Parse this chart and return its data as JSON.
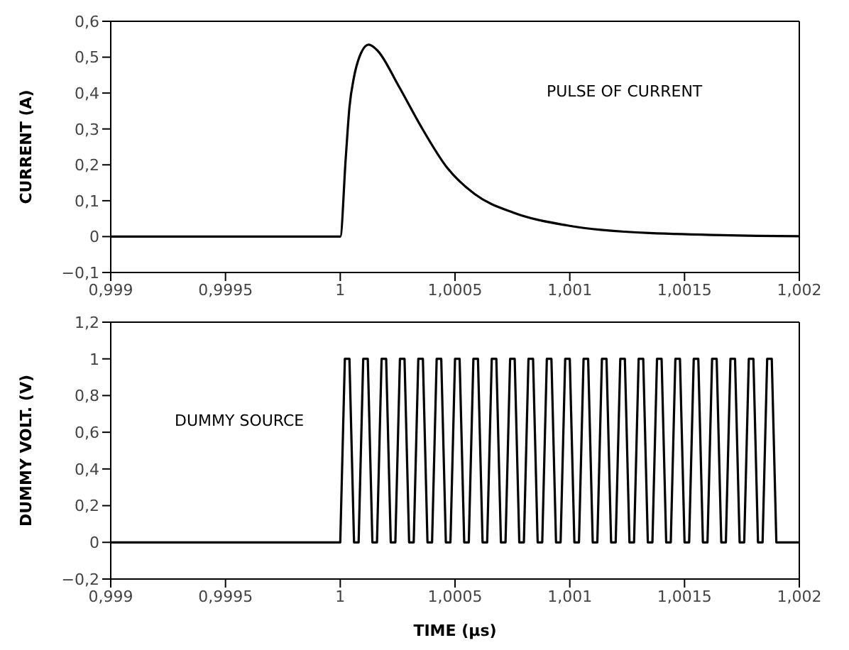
{
  "chart_data": [
    {
      "type": "line",
      "ylabel": "CURRENT (A)",
      "annotations": [
        "PULSE OF CURRENT"
      ],
      "marker": "none",
      "line_style": "solid",
      "legend": false,
      "xlim": [
        0.999,
        1.002
      ],
      "xticks": [
        {
          "value": 0.999,
          "label": "0,999"
        },
        {
          "value": 0.9995,
          "label": "0,9995"
        },
        1,
        {
          "value": 1.0005,
          "label": "1,0005"
        },
        {
          "value": 1.001,
          "label": "1,001"
        },
        {
          "value": 1.0015,
          "label": "1,0015"
        },
        {
          "value": 1.002,
          "label": "1,002"
        }
      ],
      "ylim": [
        -0.1,
        0.6
      ],
      "yticks": [
        {
          "value": -0.1,
          "label": "−0,1"
        },
        {
          "value": 0,
          "label": "0"
        },
        {
          "value": 0.1,
          "label": "0,1"
        },
        {
          "value": 0.2,
          "label": "0,2"
        },
        {
          "value": 0.3,
          "label": "0,3"
        },
        {
          "value": 0.4,
          "label": "0,4"
        },
        {
          "value": 0.5,
          "label": "0,5"
        },
        {
          "value": 0.6,
          "label": "0,6"
        }
      ],
      "series": [
        {
          "color": "#000000",
          "x": [
            0.999,
            1,
            1.000024,
            1.00004,
            1.00006,
            1.000083,
            1.000124,
            1.00016,
            1.000254,
            1.000349,
            1.000468,
            1.000587,
            1.000753,
            1.00099,
            1.001347,
            1.002
          ],
          "values": [
            0,
            0,
            0.22,
            0.36,
            0.445,
            0.5,
            0.535,
            0.52,
            0.42,
            0.31,
            0.19,
            0.118,
            0.067,
            0.031,
            0.01,
            0.001
          ]
        }
      ]
    },
    {
      "type": "line",
      "xlabel": "TIME (µs)",
      "ylabel": "DUMMY VOLT. (V)",
      "annotations": [
        "DUMMY SOURCE"
      ],
      "marker": "none",
      "line_style": "solid",
      "legend": false,
      "xlim": [
        0.999,
        1.002
      ],
      "xticks": [
        {
          "value": 0.999,
          "label": "0,999"
        },
        {
          "value": 0.9995,
          "label": "0,9995"
        },
        1,
        {
          "value": 1.0005,
          "label": "1,0005"
        },
        {
          "value": 1.001,
          "label": "1,001"
        },
        {
          "value": 1.0015,
          "label": "1,0015"
        },
        {
          "value": 1.002,
          "label": "1,002"
        }
      ],
      "ylim": [
        -0.2,
        1.2
      ],
      "yticks": [
        {
          "value": -0.2,
          "label": "−0,2"
        },
        {
          "value": 0,
          "label": "0"
        },
        {
          "value": 0.2,
          "label": "0,2"
        },
        {
          "value": 0.4,
          "label": "0,4"
        },
        {
          "value": 0.6,
          "label": "0,6"
        },
        {
          "value": 0.8,
          "label": "0,8"
        },
        {
          "value": 1,
          "label": "1"
        },
        {
          "value": 1.2,
          "label": "1,2"
        }
      ],
      "series": [
        {
          "color": "#000000",
          "x": [
            0.999,
            1,
            1.00002,
            1.00004,
            1.00006,
            1.00008,
            1.0001,
            1.00012,
            1.00014,
            1.00016,
            1.00018,
            1.0002,
            1.00022,
            1.00024,
            1.00026,
            1.00028,
            1.0003,
            1.00032,
            1.00034,
            1.00036,
            1.00038,
            1.0004,
            1.00042,
            1.00044,
            1.00046,
            1.00048,
            1.0005,
            1.00052,
            1.00054,
            1.00056,
            1.00058,
            1.0006,
            1.00062,
            1.00064,
            1.00066,
            1.00068,
            1.0007,
            1.00072,
            1.00074,
            1.00076,
            1.00078,
            1.0008,
            1.00082,
            1.00084,
            1.00086,
            1.00088,
            1.0009,
            1.00092,
            1.00094,
            1.00096,
            1.00098,
            1.001,
            1.00102,
            1.00104,
            1.00106,
            1.00108,
            1.0011,
            1.00112,
            1.00114,
            1.00116,
            1.00118,
            1.0012,
            1.00122,
            1.00124,
            1.00126,
            1.00128,
            1.0013,
            1.00132,
            1.00134,
            1.00136,
            1.00138,
            1.0014,
            1.00142,
            1.00144,
            1.00146,
            1.00148,
            1.0015,
            1.00152,
            1.00154,
            1.00156,
            1.00158,
            1.0016,
            1.00162,
            1.00164,
            1.00166,
            1.00168,
            1.0017,
            1.00172,
            1.00174,
            1.00176,
            1.00178,
            1.0018,
            1.00182,
            1.00184,
            1.00186,
            1.00188,
            1.0019,
            1.002
          ],
          "values": [
            0,
            0,
            1,
            1,
            0,
            0,
            1,
            1,
            0,
            0,
            1,
            1,
            0,
            0,
            1,
            1,
            0,
            0,
            1,
            1,
            0,
            0,
            1,
            1,
            0,
            0,
            1,
            1,
            0,
            0,
            1,
            1,
            0,
            0,
            1,
            1,
            0,
            0,
            1,
            1,
            0,
            0,
            1,
            1,
            0,
            0,
            1,
            1,
            0,
            0,
            1,
            1,
            0,
            0,
            1,
            1,
            0,
            0,
            1,
            1,
            0,
            0,
            1,
            1,
            0,
            0,
            1,
            1,
            0,
            0,
            1,
            1,
            0,
            0,
            1,
            1,
            0,
            0,
            1,
            1,
            0,
            0,
            1,
            1,
            0,
            0,
            1,
            1,
            0,
            0,
            1,
            1,
            0,
            0,
            1,
            1,
            0,
            0
          ]
        }
      ]
    }
  ]
}
